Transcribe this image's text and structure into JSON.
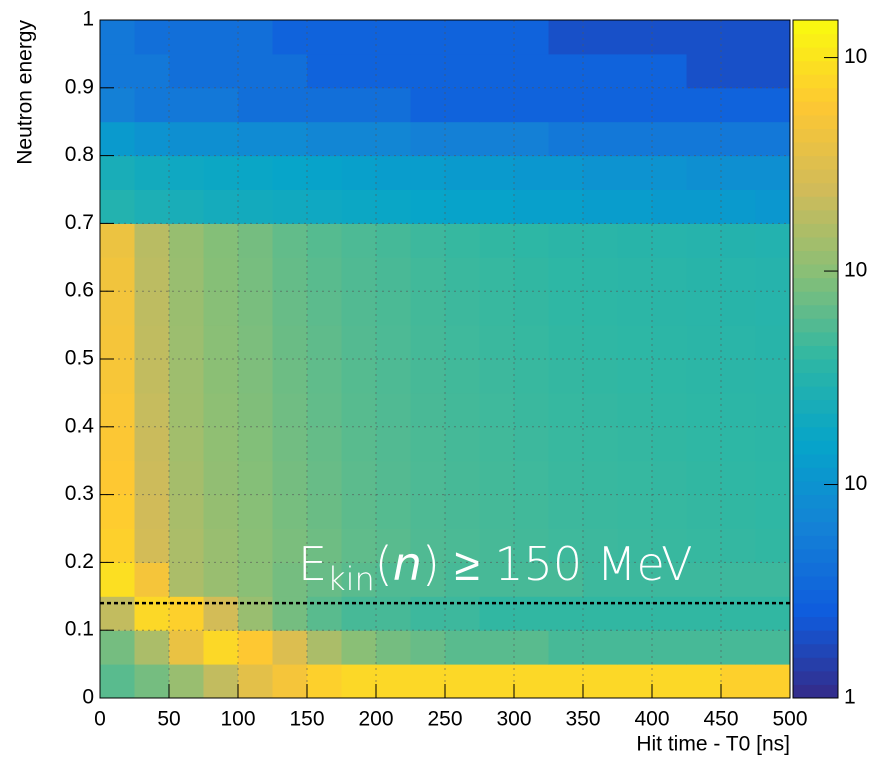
{
  "chart_data": {
    "type": "heatmap",
    "xlabel": "Hit time - T0 [ns]",
    "ylabel": "Neutron energy",
    "xlim": [
      0,
      500
    ],
    "ylim": [
      0,
      1
    ],
    "xticks": [
      0,
      50,
      100,
      150,
      200,
      250,
      300,
      350,
      400,
      450,
      500
    ],
    "yticks": [
      0,
      0.1,
      0.2,
      0.3,
      0.4,
      0.5,
      0.6,
      0.7,
      0.8,
      0.9,
      1
    ],
    "grid": true,
    "xbins": [
      0,
      25,
      50,
      75,
      100,
      125,
      150,
      175,
      200,
      225,
      250,
      275,
      300,
      325,
      350,
      375,
      400,
      425,
      450,
      475,
      500
    ],
    "ybins": [
      0,
      0.05,
      0.1,
      0.15,
      0.2,
      0.25,
      0.3,
      0.35,
      0.4,
      0.45,
      0.5,
      0.55,
      0.6,
      0.65,
      0.7,
      0.75,
      0.8,
      0.85,
      0.9,
      0.95,
      1
    ],
    "z": [
      [
        60,
        80,
        120,
        200,
        350,
        500,
        700,
        800,
        800,
        800,
        800,
        800,
        800,
        800,
        800,
        800,
        800,
        800,
        700,
        700
      ],
      [
        80,
        150,
        400,
        800,
        600,
        300,
        150,
        100,
        80,
        70,
        60,
        60,
        60,
        50,
        50,
        50,
        50,
        50,
        50,
        50
      ],
      [
        200,
        800,
        700,
        250,
        120,
        80,
        60,
        50,
        50,
        45,
        45,
        40,
        40,
        40,
        40,
        40,
        40,
        40,
        40,
        40
      ],
      [
        900,
        500,
        150,
        120,
        100,
        80,
        70,
        60,
        55,
        55,
        50,
        50,
        50,
        50,
        45,
        45,
        45,
        45,
        45,
        45
      ],
      [
        700,
        250,
        150,
        120,
        100,
        85,
        75,
        65,
        60,
        55,
        52,
        50,
        48,
        46,
        45,
        44,
        43,
        42,
        41,
        40
      ],
      [
        650,
        240,
        145,
        115,
        98,
        82,
        72,
        63,
        58,
        54,
        51,
        49,
        47,
        45,
        44,
        43,
        42,
        41,
        40,
        39
      ],
      [
        600,
        230,
        140,
        110,
        95,
        80,
        70,
        62,
        57,
        53,
        50,
        48,
        46,
        44,
        43,
        42,
        41,
        40,
        39,
        38
      ],
      [
        580,
        220,
        135,
        108,
        92,
        78,
        68,
        60,
        56,
        52,
        49,
        47,
        45,
        43,
        42,
        41,
        40,
        39,
        38,
        37
      ],
      [
        550,
        210,
        130,
        105,
        90,
        76,
        66,
        59,
        55,
        51,
        48,
        46,
        44,
        42,
        41,
        40,
        39,
        38,
        37,
        36
      ],
      [
        520,
        200,
        128,
        102,
        88,
        74,
        65,
        58,
        54,
        50,
        47,
        45,
        43,
        41,
        40,
        39,
        38,
        37,
        36,
        35
      ],
      [
        500,
        195,
        125,
        100,
        86,
        72,
        64,
        57,
        53,
        49,
        46,
        44,
        42,
        40,
        39,
        38,
        37,
        36,
        35,
        34
      ],
      [
        480,
        190,
        122,
        98,
        84,
        70,
        62,
        56,
        52,
        48,
        45,
        43,
        41,
        39,
        38,
        37,
        36,
        35,
        34,
        33
      ],
      [
        460,
        185,
        120,
        96,
        82,
        68,
        60,
        55,
        51,
        47,
        44,
        42,
        40,
        38,
        37,
        36,
        35,
        34,
        33,
        32
      ],
      [
        420,
        180,
        118,
        94,
        80,
        66,
        58,
        53,
        49,
        45,
        42,
        40,
        38,
        36,
        35,
        34,
        33,
        32,
        31,
        30
      ],
      [
        30,
        26,
        24,
        22,
        21,
        20,
        19,
        18,
        17,
        16,
        15,
        15,
        14,
        14,
        13,
        13,
        12,
        12,
        12,
        11
      ],
      [
        24,
        21,
        19,
        18,
        17,
        16,
        15,
        14,
        13,
        13,
        12,
        12,
        11,
        11,
        10,
        10,
        10,
        9,
        9,
        9
      ],
      [
        12,
        10,
        9,
        9,
        8,
        8,
        7,
        7,
        7,
        6,
        6,
        6,
        6,
        5,
        5,
        5,
        5,
        5,
        5,
        5
      ],
      [
        6,
        5,
        5,
        5,
        4,
        4,
        4,
        4,
        4,
        3,
        3,
        3,
        3,
        3,
        3,
        3,
        3,
        3,
        3,
        3
      ],
      [
        5,
        5,
        4,
        4,
        4,
        4,
        3,
        3,
        3,
        3,
        3,
        3,
        3,
        3,
        3,
        3,
        3,
        2,
        2,
        2
      ],
      [
        5,
        4,
        4,
        4,
        4,
        3,
        3,
        3,
        3,
        3,
        3,
        3,
        3,
        2,
        2,
        2,
        2,
        2,
        2,
        2
      ]
    ],
    "zscale": "log",
    "zlim": [
      1,
      1500
    ],
    "zticks": [
      1,
      10,
      {
        "value": 100,
        "label": "10"
      },
      {
        "value": 1000,
        "label": "10"
      }
    ],
    "palette": [
      "#352a87",
      "#0f5cdd",
      "#1481d6",
      "#06a4ca",
      "#2eb7a4",
      "#87bf77",
      "#d1bb59",
      "#fec832",
      "#f9fb0e"
    ],
    "threshold": 0.14,
    "annotation": {
      "base": "E",
      "subscript": "kin",
      "open": "(",
      "italic": "n",
      "rest": ") ≥ 150 MeV"
    }
  }
}
